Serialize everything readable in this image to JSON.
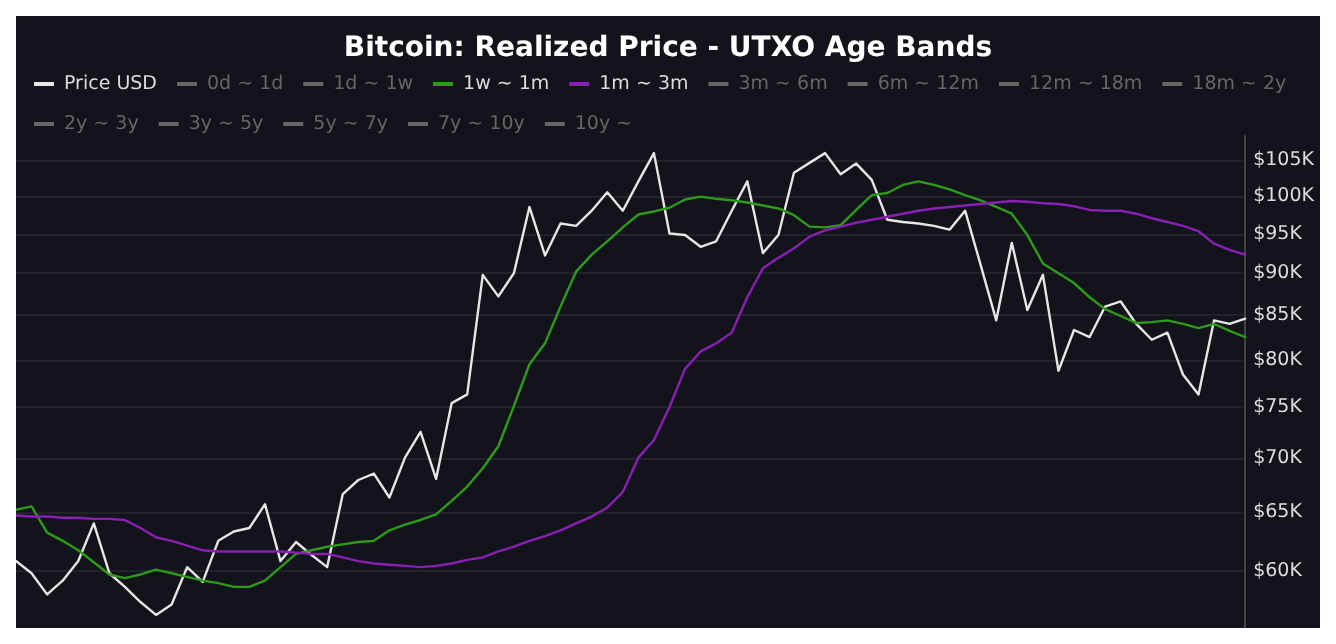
{
  "chart_data": {
    "type": "line",
    "title": "Bitcoin: Realized Price - UTXO Age Bands",
    "legend": "top",
    "grid": "y",
    "tick_labels": "y",
    "log": true,
    "line_style": "solid",
    "categories": [
      null,
      null,
      null,
      null,
      null,
      null,
      null,
      null,
      null,
      null,
      null,
      null,
      null,
      null,
      null,
      null,
      null,
      null,
      null,
      null,
      null,
      null,
      null,
      null,
      null,
      null,
      null,
      null,
      null,
      null,
      null,
      null,
      null,
      null,
      null,
      null,
      null,
      null,
      null,
      null,
      null,
      null,
      null,
      null,
      null,
      null,
      null,
      null,
      null,
      null,
      null,
      null,
      null,
      null,
      null,
      null,
      null,
      null,
      null,
      null,
      null,
      null,
      null,
      null,
      null,
      null,
      null,
      null,
      null,
      null,
      null,
      null,
      null,
      null,
      null,
      null,
      null,
      null,
      null,
      null
    ],
    "ylim": [
      55500,
      108500
    ],
    "yticks": [
      {
        "value": 60000,
        "label": "$60K"
      },
      {
        "value": 65000,
        "label": "$65K"
      },
      {
        "value": 70000,
        "label": "$70K"
      },
      {
        "value": 75000,
        "label": "$75K"
      },
      {
        "value": 80000,
        "label": "$80K"
      },
      {
        "value": 85000,
        "label": "$85K"
      },
      {
        "value": 90000,
        "label": "$90K"
      },
      {
        "value": 95000,
        "label": "$95K"
      },
      {
        "value": 100000,
        "label": "$100K"
      },
      {
        "value": 105000,
        "label": "$105K"
      }
    ],
    "series": [
      {
        "name": "Price USD",
        "color": "#e6e6e6",
        "values": [
          60800,
          59800,
          58100,
          59200,
          60800,
          64000,
          59800,
          58700,
          57500,
          56500,
          57300,
          60300,
          59100,
          62500,
          63300,
          63600,
          65700,
          60800,
          62400,
          61300,
          60300,
          66600,
          67900,
          68500,
          66300,
          70000,
          72500,
          68000,
          75400,
          76300,
          89800,
          87200,
          90000,
          98500,
          92200,
          96300,
          96000,
          98000,
          100500,
          98000,
          102000,
          106000,
          95000,
          94800,
          93300,
          94000,
          98000,
          102000,
          92500,
          94800,
          103200,
          104600,
          106000,
          103000,
          104500,
          102200,
          96800,
          96500,
          96300,
          96000,
          95500,
          98000,
          91000,
          84400,
          93800,
          85600,
          89800,
          78800,
          83300,
          82500,
          86000,
          86600,
          84000,
          82200,
          83000,
          78400,
          76300,
          84400,
          84000,
          84600
        ]
      },
      {
        "name": "0d ~ 1d",
        "values": [
          null,
          null,
          null,
          null,
          null,
          null,
          null,
          null,
          null,
          null,
          null,
          null,
          null,
          null,
          null,
          null,
          null,
          null,
          null,
          null,
          null,
          null,
          null,
          null,
          null,
          null,
          null,
          null,
          null,
          null,
          null,
          null,
          null,
          null,
          null,
          null,
          null,
          null,
          null,
          null,
          null,
          null,
          null,
          null,
          null,
          null,
          null,
          null,
          null,
          null,
          null,
          null,
          null,
          null,
          null,
          null,
          null,
          null,
          null,
          null,
          null,
          null,
          null,
          null,
          null,
          null,
          null,
          null,
          null,
          null,
          null,
          null,
          null,
          null,
          null,
          null,
          null,
          null,
          null,
          null
        ]
      },
      {
        "name": "1d ~ 1w",
        "values": [
          null,
          null,
          null,
          null,
          null,
          null,
          null,
          null,
          null,
          null,
          null,
          null,
          null,
          null,
          null,
          null,
          null,
          null,
          null,
          null,
          null,
          null,
          null,
          null,
          null,
          null,
          null,
          null,
          null,
          null,
          null,
          null,
          null,
          null,
          null,
          null,
          null,
          null,
          null,
          null,
          null,
          null,
          null,
          null,
          null,
          null,
          null,
          null,
          null,
          null,
          null,
          null,
          null,
          null,
          null,
          null,
          null,
          null,
          null,
          null,
          null,
          null,
          null,
          null,
          null,
          null,
          null,
          null,
          null,
          null,
          null,
          null,
          null,
          null,
          null,
          null,
          null,
          null,
          null,
          null
        ]
      },
      {
        "name": "1w ~ 1m",
        "color": "#2e9a1a",
        "values": [
          65200,
          65500,
          63200,
          62500,
          61700,
          60700,
          59700,
          59400,
          59700,
          60100,
          59800,
          59500,
          59200,
          59000,
          58700,
          58700,
          59200,
          60300,
          61400,
          61700,
          62000,
          62200,
          62400,
          62500,
          63400,
          63900,
          64300,
          64800,
          66000,
          67300,
          69000,
          71100,
          75100,
          79500,
          81800,
          86000,
          90200,
          92300,
          94000,
          95800,
          97500,
          97900,
          98400,
          99500,
          99900,
          99600,
          99400,
          99100,
          98700,
          98300,
          97400,
          95900,
          95800,
          96100,
          98100,
          100100,
          100400,
          101500,
          102000,
          101500,
          100900,
          100100,
          99400,
          98500,
          97600,
          94800,
          91200,
          90000,
          88800,
          87100,
          85700,
          84900,
          84100,
          84200,
          84400,
          84000,
          83500,
          84000,
          83200,
          82500
        ]
      },
      {
        "name": "1m ~ 3m",
        "color": "#8a1fb5",
        "values": [
          64700,
          64600,
          64600,
          64500,
          64500,
          64400,
          64400,
          64300,
          63600,
          62800,
          62500,
          62100,
          61700,
          61600,
          61600,
          61600,
          61600,
          61600,
          61500,
          61400,
          61400,
          61100,
          60800,
          60600,
          60500,
          60400,
          60300,
          60400,
          60600,
          60900,
          61100,
          61600,
          62000,
          62500,
          62900,
          63400,
          64000,
          64600,
          65400,
          66800,
          70000,
          71700,
          75000,
          79000,
          80900,
          81800,
          83000,
          87100,
          90600,
          91900,
          93100,
          94600,
          95400,
          95900,
          96400,
          96800,
          97200,
          97600,
          98000,
          98300,
          98500,
          98700,
          98900,
          99100,
          99300,
          99200,
          99000,
          98900,
          98600,
          98100,
          98000,
          98000,
          97600,
          97000,
          96500,
          96000,
          95300,
          93700,
          92900,
          92300
        ]
      },
      {
        "name": "3m ~ 6m",
        "values": [
          null,
          null,
          null,
          null,
          null,
          null,
          null,
          null,
          null,
          null,
          null,
          null,
          null,
          null,
          null,
          null,
          null,
          null,
          null,
          null,
          null,
          null,
          null,
          null,
          null,
          null,
          null,
          null,
          null,
          null,
          null,
          null,
          null,
          null,
          null,
          null,
          null,
          null,
          null,
          null,
          null,
          null,
          null,
          null,
          null,
          null,
          null,
          null,
          null,
          null,
          null,
          null,
          null,
          null,
          null,
          null,
          null,
          null,
          null,
          null,
          null,
          null,
          null,
          null,
          null,
          null,
          null,
          null,
          null,
          null,
          null,
          null,
          null,
          null,
          null,
          null,
          null,
          null,
          null,
          null
        ]
      },
      {
        "name": "6m ~ 12m",
        "values": [
          null,
          null,
          null,
          null,
          null,
          null,
          null,
          null,
          null,
          null,
          null,
          null,
          null,
          null,
          null,
          null,
          null,
          null,
          null,
          null,
          null,
          null,
          null,
          null,
          null,
          null,
          null,
          null,
          null,
          null,
          null,
          null,
          null,
          null,
          null,
          null,
          null,
          null,
          null,
          null,
          null,
          null,
          null,
          null,
          null,
          null,
          null,
          null,
          null,
          null,
          null,
          null,
          null,
          null,
          null,
          null,
          null,
          null,
          null,
          null,
          null,
          null,
          null,
          null,
          null,
          null,
          null,
          null,
          null,
          null,
          null,
          null,
          null,
          null,
          null,
          null,
          null,
          null,
          null,
          null
        ]
      },
      {
        "name": "12m ~ 18m",
        "values": [
          null,
          null,
          null,
          null,
          null,
          null,
          null,
          null,
          null,
          null,
          null,
          null,
          null,
          null,
          null,
          null,
          null,
          null,
          null,
          null,
          null,
          null,
          null,
          null,
          null,
          null,
          null,
          null,
          null,
          null,
          null,
          null,
          null,
          null,
          null,
          null,
          null,
          null,
          null,
          null,
          null,
          null,
          null,
          null,
          null,
          null,
          null,
          null,
          null,
          null,
          null,
          null,
          null,
          null,
          null,
          null,
          null,
          null,
          null,
          null,
          null,
          null,
          null,
          null,
          null,
          null,
          null,
          null,
          null,
          null,
          null,
          null,
          null,
          null,
          null,
          null,
          null,
          null,
          null,
          null
        ]
      },
      {
        "name": "18m ~ 2y",
        "values": [
          null,
          null,
          null,
          null,
          null,
          null,
          null,
          null,
          null,
          null,
          null,
          null,
          null,
          null,
          null,
          null,
          null,
          null,
          null,
          null,
          null,
          null,
          null,
          null,
          null,
          null,
          null,
          null,
          null,
          null,
          null,
          null,
          null,
          null,
          null,
          null,
          null,
          null,
          null,
          null,
          null,
          null,
          null,
          null,
          null,
          null,
          null,
          null,
          null,
          null,
          null,
          null,
          null,
          null,
          null,
          null,
          null,
          null,
          null,
          null,
          null,
          null,
          null,
          null,
          null,
          null,
          null,
          null,
          null,
          null,
          null,
          null,
          null,
          null,
          null,
          null,
          null,
          null,
          null,
          null
        ]
      },
      {
        "name": "2y ~ 3y",
        "values": [
          null,
          null,
          null,
          null,
          null,
          null,
          null,
          null,
          null,
          null,
          null,
          null,
          null,
          null,
          null,
          null,
          null,
          null,
          null,
          null,
          null,
          null,
          null,
          null,
          null,
          null,
          null,
          null,
          null,
          null,
          null,
          null,
          null,
          null,
          null,
          null,
          null,
          null,
          null,
          null,
          null,
          null,
          null,
          null,
          null,
          null,
          null,
          null,
          null,
          null,
          null,
          null,
          null,
          null,
          null,
          null,
          null,
          null,
          null,
          null,
          null,
          null,
          null,
          null,
          null,
          null,
          null,
          null,
          null,
          null,
          null,
          null,
          null,
          null,
          null,
          null,
          null,
          null,
          null,
          null
        ]
      },
      {
        "name": "3y ~ 5y",
        "values": [
          null,
          null,
          null,
          null,
          null,
          null,
          null,
          null,
          null,
          null,
          null,
          null,
          null,
          null,
          null,
          null,
          null,
          null,
          null,
          null,
          null,
          null,
          null,
          null,
          null,
          null,
          null,
          null,
          null,
          null,
          null,
          null,
          null,
          null,
          null,
          null,
          null,
          null,
          null,
          null,
          null,
          null,
          null,
          null,
          null,
          null,
          null,
          null,
          null,
          null,
          null,
          null,
          null,
          null,
          null,
          null,
          null,
          null,
          null,
          null,
          null,
          null,
          null,
          null,
          null,
          null,
          null,
          null,
          null,
          null,
          null,
          null,
          null,
          null,
          null,
          null,
          null,
          null,
          null,
          null
        ]
      },
      {
        "name": "5y ~ 7y",
        "values": [
          null,
          null,
          null,
          null,
          null,
          null,
          null,
          null,
          null,
          null,
          null,
          null,
          null,
          null,
          null,
          null,
          null,
          null,
          null,
          null,
          null,
          null,
          null,
          null,
          null,
          null,
          null,
          null,
          null,
          null,
          null,
          null,
          null,
          null,
          null,
          null,
          null,
          null,
          null,
          null,
          null,
          null,
          null,
          null,
          null,
          null,
          null,
          null,
          null,
          null,
          null,
          null,
          null,
          null,
          null,
          null,
          null,
          null,
          null,
          null,
          null,
          null,
          null,
          null,
          null,
          null,
          null,
          null,
          null,
          null,
          null,
          null,
          null,
          null,
          null,
          null,
          null,
          null,
          null,
          null
        ]
      },
      {
        "name": "7y ~ 10y",
        "values": [
          null,
          null,
          null,
          null,
          null,
          null,
          null,
          null,
          null,
          null,
          null,
          null,
          null,
          null,
          null,
          null,
          null,
          null,
          null,
          null,
          null,
          null,
          null,
          null,
          null,
          null,
          null,
          null,
          null,
          null,
          null,
          null,
          null,
          null,
          null,
          null,
          null,
          null,
          null,
          null,
          null,
          null,
          null,
          null,
          null,
          null,
          null,
          null,
          null,
          null,
          null,
          null,
          null,
          null,
          null,
          null,
          null,
          null,
          null,
          null,
          null,
          null,
          null,
          null,
          null,
          null,
          null,
          null,
          null,
          null,
          null,
          null,
          null,
          null,
          null,
          null,
          null,
          null,
          null,
          null
        ]
      },
      {
        "name": "10y ~",
        "values": [
          null,
          null,
          null,
          null,
          null,
          null,
          null,
          null,
          null,
          null,
          null,
          null,
          null,
          null,
          null,
          null,
          null,
          null,
          null,
          null,
          null,
          null,
          null,
          null,
          null,
          null,
          null,
          null,
          null,
          null,
          null,
          null,
          null,
          null,
          null,
          null,
          null,
          null,
          null,
          null,
          null,
          null,
          null,
          null,
          null,
          null,
          null,
          null,
          null,
          null,
          null,
          null,
          null,
          null,
          null,
          null,
          null,
          null,
          null,
          null,
          null,
          null,
          null,
          null,
          null,
          null,
          null,
          null,
          null,
          null,
          null,
          null,
          null,
          null,
          null,
          null,
          null,
          null,
          null,
          null
        ]
      }
    ]
  }
}
